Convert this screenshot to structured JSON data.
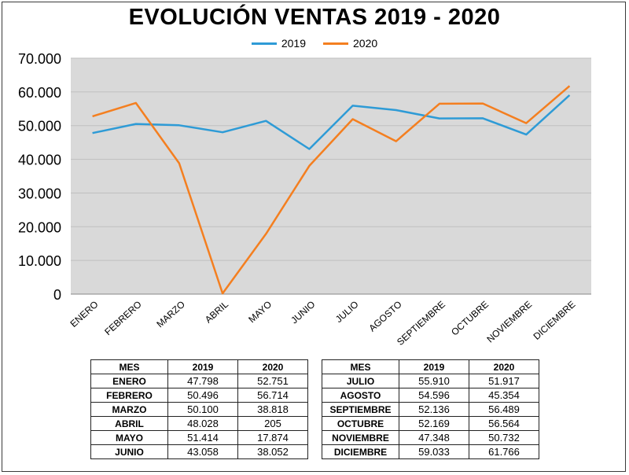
{
  "chart_data": {
    "type": "line",
    "title": "EVOLUCIÓN VENTAS 2019 - 2020",
    "categories": [
      "ENERO",
      "FEBRERO",
      "MARZO",
      "ABRIL",
      "MAYO",
      "JUNIO",
      "JULIO",
      "AGOSTO",
      "SEPTIEMBRE",
      "OCTUBRE",
      "NOVIEMBRE",
      "DICIEMBRE"
    ],
    "series": [
      {
        "name": "2019",
        "color": "#2e9bd6",
        "values": [
          47798,
          50496,
          50100,
          48028,
          51414,
          43058,
          55910,
          54596,
          52136,
          52169,
          47348,
          59033
        ]
      },
      {
        "name": "2020",
        "color": "#f47f20",
        "values": [
          52751,
          56714,
          38818,
          205,
          17874,
          38052,
          51917,
          45354,
          56489,
          56564,
          50732,
          61766
        ]
      }
    ],
    "ylim": [
      0,
      70000
    ],
    "yticks": [
      "0",
      "10.000",
      "20.000",
      "30.000",
      "40.000",
      "50.000",
      "60.000",
      "70.000"
    ],
    "grid": true,
    "legend_position": "top-center",
    "plot_background": "#d9d9d9"
  },
  "tables": {
    "left": {
      "headers": [
        "MES",
        "2019",
        "2020"
      ],
      "rows": [
        [
          "ENERO",
          "47.798",
          "52.751"
        ],
        [
          "FEBRERO",
          "50.496",
          "56.714"
        ],
        [
          "MARZO",
          "50.100",
          "38.818"
        ],
        [
          "ABRIL",
          "48.028",
          "205"
        ],
        [
          "MAYO",
          "51.414",
          "17.874"
        ],
        [
          "JUNIO",
          "43.058",
          "38.052"
        ]
      ]
    },
    "right": {
      "headers": [
        "MES",
        "2019",
        "2020"
      ],
      "rows": [
        [
          "JULIO",
          "55.910",
          "51.917"
        ],
        [
          "AGOSTO",
          "54.596",
          "45.354"
        ],
        [
          "SEPTIEMBRE",
          "52.136",
          "56.489"
        ],
        [
          "OCTUBRE",
          "52.169",
          "56.564"
        ],
        [
          "NOVIEMBRE",
          "47.348",
          "50.732"
        ],
        [
          "DICIEMBRE",
          "59.033",
          "61.766"
        ]
      ]
    }
  }
}
